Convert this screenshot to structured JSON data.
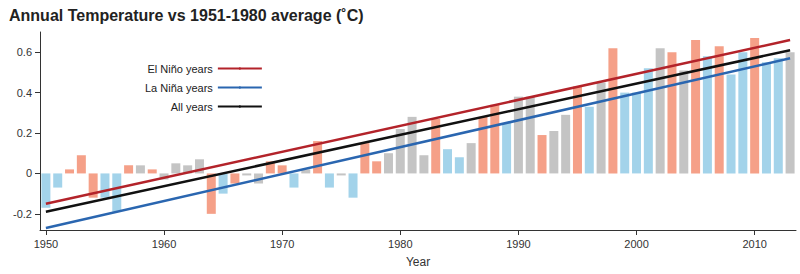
{
  "chart_data": {
    "type": "bar",
    "title": "Annual Temperature vs 1951-1980 average (˚C)",
    "x_label": "Year",
    "xlim": [
      1949.5,
      2013.5
    ],
    "xticks": [
      1950,
      1960,
      1970,
      1980,
      1990,
      2000,
      2010
    ],
    "ylim": [
      -0.28,
      0.7
    ],
    "yticks": [
      -0.2,
      0,
      0.2,
      0.4,
      0.6
    ],
    "grid": false,
    "legend": "upper left",
    "series": [
      {
        "type": "bar",
        "x": [
          1950,
          1951,
          1952,
          1953,
          1954,
          1955,
          1956,
          1957,
          1958,
          1959,
          1960,
          1961,
          1962,
          1963,
          1964,
          1965,
          1966,
          1967,
          1968,
          1969,
          1970,
          1971,
          1972,
          1973,
          1974,
          1975,
          1976,
          1977,
          1978,
          1979,
          1980,
          1981,
          1982,
          1983,
          1984,
          1985,
          1986,
          1987,
          1988,
          1989,
          1990,
          1991,
          1992,
          1993,
          1994,
          1995,
          1996,
          1997,
          1998,
          1999,
          2000,
          2001,
          2002,
          2003,
          2004,
          2005,
          2006,
          2007,
          2008,
          2009,
          2010,
          2011,
          2012,
          2013
        ],
        "values": [
          -0.17,
          -0.07,
          0.02,
          0.09,
          -0.12,
          -0.12,
          -0.19,
          0.04,
          0.04,
          0.02,
          -0.03,
          0.05,
          0.04,
          0.07,
          -0.2,
          -0.1,
          -0.05,
          -0.01,
          -0.05,
          0.06,
          0.04,
          -0.07,
          0.02,
          0.16,
          -0.07,
          -0.01,
          -0.12,
          0.15,
          0.06,
          0.1,
          0.22,
          0.28,
          0.09,
          0.27,
          0.12,
          0.08,
          0.15,
          0.28,
          0.34,
          0.25,
          0.38,
          0.38,
          0.19,
          0.21,
          0.29,
          0.43,
          0.33,
          0.45,
          0.62,
          0.4,
          0.4,
          0.52,
          0.62,
          0.6,
          0.51,
          0.66,
          0.58,
          0.63,
          0.49,
          0.6,
          0.67,
          0.55,
          0.57,
          0.6
        ],
        "colors": [
          "#a3d3ea",
          "#a3d3ea",
          "#f5a088",
          "#f5a088",
          "#f5a088",
          "#a3d3ea",
          "#a3d3ea",
          "#f5a088",
          "#c4c4c4",
          "#f5a088",
          "#c4c4c4",
          "#c4c4c4",
          "#c4c4c4",
          "#c4c4c4",
          "#f5a088",
          "#a3d3ea",
          "#f5a088",
          "#c4c4c4",
          "#c4c4c4",
          "#f5a088",
          "#f5a088",
          "#a3d3ea",
          "#c4c4c4",
          "#f5a088",
          "#a3d3ea",
          "#c4c4c4",
          "#a3d3ea",
          "#f5a088",
          "#f5a088",
          "#c4c4c4",
          "#c4c4c4",
          "#c4c4c4",
          "#c4c4c4",
          "#f5a088",
          "#a3d3ea",
          "#a3d3ea",
          "#c4c4c4",
          "#f5a088",
          "#f5a088",
          "#a3d3ea",
          "#c4c4c4",
          "#c4c4c4",
          "#f5a088",
          "#c4c4c4",
          "#c4c4c4",
          "#f5a088",
          "#a3d3ea",
          "#c4c4c4",
          "#f5a088",
          "#a3d3ea",
          "#a3d3ea",
          "#a3d3ea",
          "#c4c4c4",
          "#f5a088",
          "#c4c4c4",
          "#f5a088",
          "#a3d3ea",
          "#f5a088",
          "#a3d3ea",
          "#a3d3ea",
          "#f5a088",
          "#a3d3ea",
          "#a3d3ea",
          "#c4c4c4"
        ]
      },
      {
        "type": "line",
        "name": "El Niño years",
        "color": "#b3232a",
        "x": [
          1950,
          2013
        ],
        "values": [
          -0.15,
          0.66
        ]
      },
      {
        "type": "line",
        "name": "La Niña years",
        "color": "#2a66b0",
        "x": [
          1950,
          2013
        ],
        "values": [
          -0.27,
          0.57
        ]
      },
      {
        "type": "line",
        "name": "All years",
        "color": "#111111",
        "x": [
          1950,
          2013
        ],
        "values": [
          -0.19,
          0.61
        ]
      }
    ]
  }
}
